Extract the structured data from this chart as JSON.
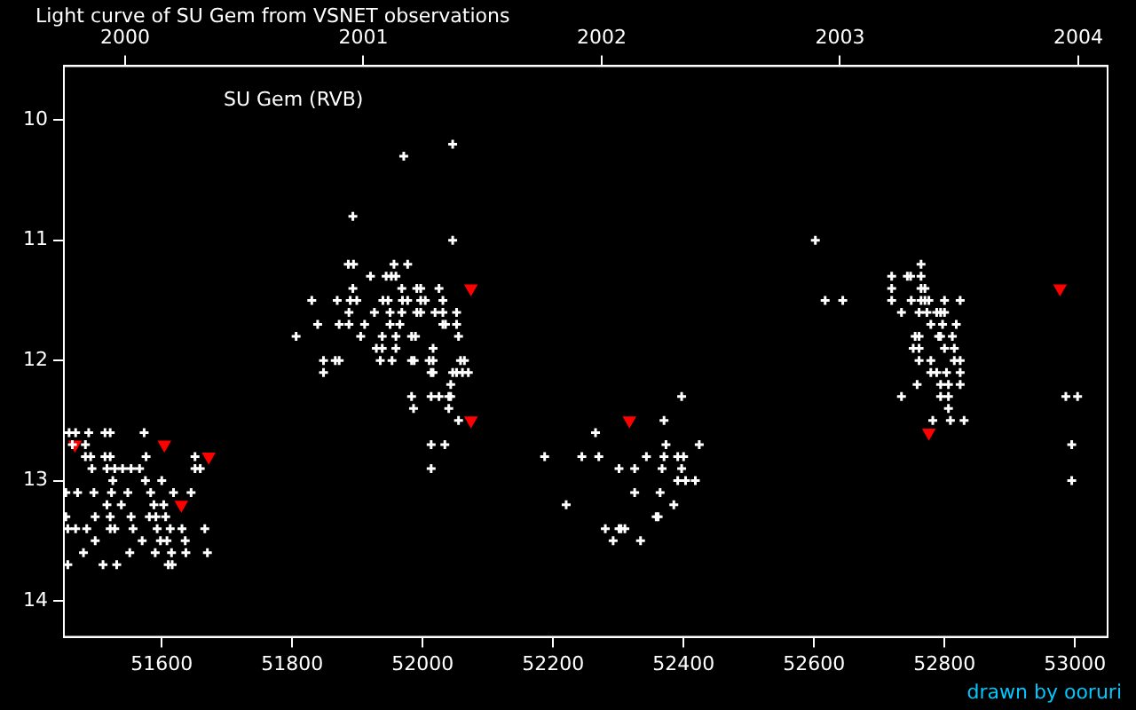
{
  "chart_data": {
    "type": "scatter",
    "title": "Light curve of SU Gem from VSNET observations",
    "annotations": [
      "SU Gem (RVB)",
      "drawn by ooruri"
    ],
    "xlim": [
      51450,
      53050
    ],
    "xticks": [
      51600,
      51800,
      52000,
      52200,
      52400,
      52600,
      52800,
      53000
    ],
    "x2lim": [
      1999.743,
      2004.123
    ],
    "x2ticks": [
      2000,
      2001,
      2002,
      2003,
      2004
    ],
    "ylim": [
      14.3,
      9.55
    ],
    "yticks": [
      10,
      11,
      12,
      13,
      14
    ],
    "grid": false,
    "legend": false,
    "series": [
      {
        "color": "#ffffff",
        "marker": "cross",
        "x": [
          51458,
          51468,
          51488,
          51513,
          51521,
          51573,
          51463,
          51483,
          51483,
          51491,
          51513,
          51521,
          51576,
          51651,
          51493,
          51516,
          51528,
          51540,
          51553,
          51566,
          51651,
          51659,
          51525,
          51575,
          51600,
          51453,
          51471,
          51496,
          51523,
          51548,
          51583,
          51618,
          51645,
          51516,
          51538,
          51588,
          51603,
          51453,
          51498,
          51521,
          51553,
          51581,
          51591,
          51606,
          51456,
          51468,
          51485,
          51521,
          51528,
          51556,
          51593,
          51613,
          51631,
          51666,
          51498,
          51570,
          51598,
          51608,
          51636,
          51480,
          51551,
          51590,
          51615,
          51637,
          51670,
          51456,
          51510,
          51531,
          51610,
          51616,
          52046,
          51971,
          51893,
          52046,
          51886,
          51894,
          51956,
          51977,
          51920,
          51944,
          51952,
          51959,
          51893,
          51968,
          51991,
          51997,
          52025,
          51830,
          51869,
          51889,
          51899,
          51939,
          51947,
          51969,
          51977,
          51997,
          52004,
          52031,
          51887,
          51926,
          51950,
          51968,
          51991,
          51997,
          52019,
          52031,
          52052,
          51839,
          51872,
          51887,
          51911,
          51950,
          51965,
          52031,
          52035,
          52052,
          51806,
          51905,
          51938,
          51959,
          51983,
          51989,
          52055,
          51929,
          51938,
          51959,
          52016,
          51848,
          51866,
          51872,
          51935,
          51953,
          51983,
          51987,
          52010,
          52016,
          52058,
          52064,
          51848,
          52013,
          52016,
          52046,
          52052,
          52061,
          52070,
          52043,
          51983,
          52013,
          52025,
          52040,
          52043,
          51986,
          52040,
          52055,
          52013,
          52034,
          52013,
          52397,
          52370,
          52265,
          52373,
          52424,
          52187,
          52244,
          52270,
          52343,
          52370,
          52391,
          52400,
          52301,
          52325,
          52367,
          52397,
          52391,
          52403,
          52418,
          52325,
          52364,
          52220,
          52385,
          52358,
          52361,
          52280,
          52301,
          52304,
          52310,
          52292,
          52334,
          52602,
          52764,
          52719,
          52743,
          52748,
          52764,
          52719,
          52764,
          52770,
          52617,
          52644,
          52719,
          52749,
          52764,
          52770,
          52776,
          52800,
          52824,
          52734,
          52761,
          52773,
          52788,
          52794,
          52800,
          52779,
          52797,
          52818,
          52755,
          52761,
          52791,
          52794,
          52812,
          52752,
          52761,
          52800,
          52815,
          52761,
          52779,
          52815,
          52824,
          52779,
          52788,
          52803,
          52824,
          52758,
          52794,
          52806,
          52824,
          52734,
          52794,
          52806,
          52806,
          52782,
          52809,
          52830,
          52986,
          53004,
          52995,
          52995
        ],
        "values": [
          12.6,
          12.6,
          12.6,
          12.6,
          12.6,
          12.6,
          12.7,
          12.7,
          12.8,
          12.8,
          12.8,
          12.8,
          12.8,
          12.8,
          12.9,
          12.9,
          12.9,
          12.9,
          12.9,
          12.9,
          12.9,
          12.9,
          13.0,
          13.0,
          13.0,
          13.1,
          13.1,
          13.1,
          13.1,
          13.1,
          13.1,
          13.1,
          13.1,
          13.2,
          13.2,
          13.2,
          13.2,
          13.3,
          13.3,
          13.3,
          13.3,
          13.3,
          13.3,
          13.3,
          13.4,
          13.4,
          13.4,
          13.4,
          13.4,
          13.4,
          13.4,
          13.4,
          13.4,
          13.4,
          13.5,
          13.5,
          13.5,
          13.5,
          13.5,
          13.6,
          13.6,
          13.6,
          13.6,
          13.6,
          13.6,
          13.7,
          13.7,
          13.7,
          13.7,
          13.7,
          10.2,
          10.3,
          10.8,
          11.0,
          11.2,
          11.2,
          11.2,
          11.2,
          11.3,
          11.3,
          11.3,
          11.3,
          11.4,
          11.4,
          11.4,
          11.4,
          11.4,
          11.5,
          11.5,
          11.5,
          11.5,
          11.5,
          11.5,
          11.5,
          11.5,
          11.5,
          11.5,
          11.5,
          11.6,
          11.6,
          11.6,
          11.6,
          11.6,
          11.6,
          11.6,
          11.6,
          11.6,
          11.7,
          11.7,
          11.7,
          11.7,
          11.7,
          11.7,
          11.7,
          11.7,
          11.7,
          11.8,
          11.8,
          11.8,
          11.8,
          11.8,
          11.8,
          11.8,
          11.9,
          11.9,
          11.9,
          11.9,
          12.0,
          12.0,
          12.0,
          12.0,
          12.0,
          12.0,
          12.0,
          12.0,
          12.0,
          12.0,
          12.0,
          12.1,
          12.1,
          12.1,
          12.1,
          12.1,
          12.1,
          12.1,
          12.2,
          12.3,
          12.3,
          12.3,
          12.3,
          12.3,
          12.4,
          12.4,
          12.5,
          12.7,
          12.7,
          12.9,
          12.3,
          12.5,
          12.6,
          12.7,
          12.7,
          12.8,
          12.8,
          12.8,
          12.8,
          12.8,
          12.8,
          12.8,
          12.9,
          12.9,
          12.9,
          12.9,
          13.0,
          13.0,
          13.0,
          13.1,
          13.1,
          13.2,
          13.2,
          13.3,
          13.3,
          13.4,
          13.4,
          13.4,
          13.4,
          13.5,
          13.5,
          11.0,
          11.2,
          11.3,
          11.3,
          11.3,
          11.3,
          11.4,
          11.4,
          11.4,
          11.5,
          11.5,
          11.5,
          11.5,
          11.5,
          11.5,
          11.5,
          11.5,
          11.5,
          11.6,
          11.6,
          11.6,
          11.6,
          11.6,
          11.6,
          11.7,
          11.7,
          11.7,
          11.8,
          11.8,
          11.8,
          11.8,
          11.8,
          11.9,
          11.9,
          11.9,
          11.9,
          12.0,
          12.0,
          12.0,
          12.0,
          12.1,
          12.1,
          12.1,
          12.1,
          12.2,
          12.2,
          12.2,
          12.2,
          12.3,
          12.3,
          12.3,
          12.4,
          12.5,
          12.5,
          12.5,
          12.3,
          12.3,
          12.7,
          13.0
        ]
      },
      {
        "color": "#ff0000",
        "marker": "triangle",
        "x": [
          51467,
          51604,
          51672,
          51630,
          52074,
          52074,
          52317,
          52776,
          52977
        ],
        "values": [
          12.7,
          12.7,
          12.8,
          13.2,
          11.4,
          12.5,
          12.5,
          12.6,
          11.4
        ]
      }
    ]
  }
}
